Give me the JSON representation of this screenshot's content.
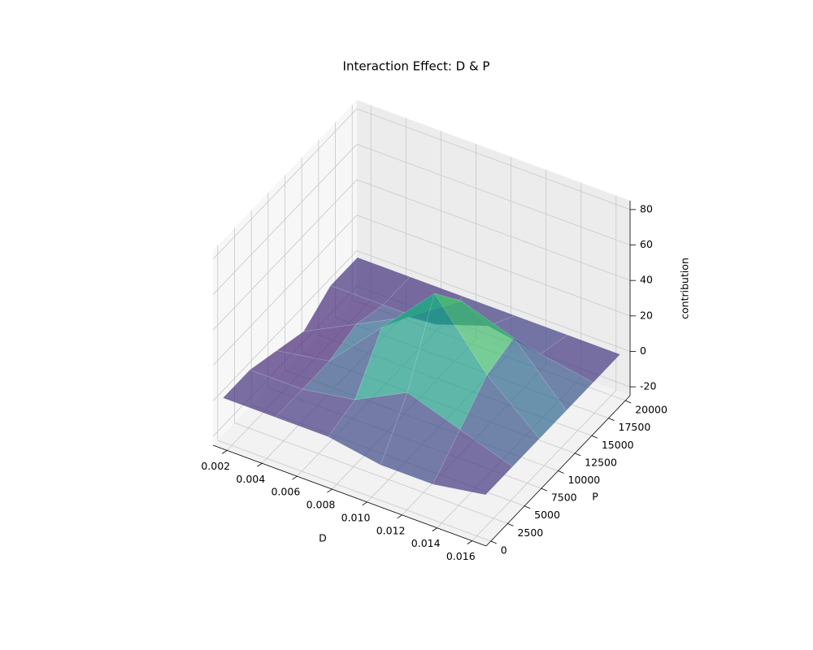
{
  "chart_data": {
    "type": "surface3d",
    "title": "Interaction Effect: D & P",
    "xlabel": "D",
    "ylabel": "P",
    "zlabel": "contribution",
    "xlim": [
      0.0012,
      0.0168
    ],
    "ylim": [
      -700,
      20700
    ],
    "zlim": [
      -25,
      85
    ],
    "xticks": [
      0.002,
      0.004,
      0.006,
      0.008,
      0.01,
      0.012,
      0.014,
      0.016
    ],
    "xtick_labels": [
      "0.002",
      "0.004",
      "0.006",
      "0.008",
      "0.010",
      "0.012",
      "0.014",
      "0.016"
    ],
    "yticks": [
      0,
      2500,
      5000,
      7500,
      10000,
      12500,
      15000,
      17500,
      20000
    ],
    "zticks": [
      -20,
      0,
      20,
      40,
      60,
      80
    ],
    "colormap": "viridis",
    "alpha": 0.7,
    "grid": true,
    "x": [
      0.0015,
      0.0045,
      0.0075,
      0.0105,
      0.0135,
      0.0165
    ],
    "y": [
      0,
      4000,
      8000,
      12000,
      16000,
      20000
    ],
    "z": [
      [
        0,
        0,
        0,
        -5,
        -5,
        0
      ],
      [
        0,
        0,
        5,
        20,
        10,
        0
      ],
      [
        -5,
        0,
        30,
        60,
        25,
        0
      ],
      [
        -10,
        5,
        20,
        40,
        30,
        0
      ],
      [
        0,
        0,
        0,
        10,
        5,
        0
      ],
      [
        0,
        0,
        0,
        0,
        0,
        0
      ]
    ]
  }
}
